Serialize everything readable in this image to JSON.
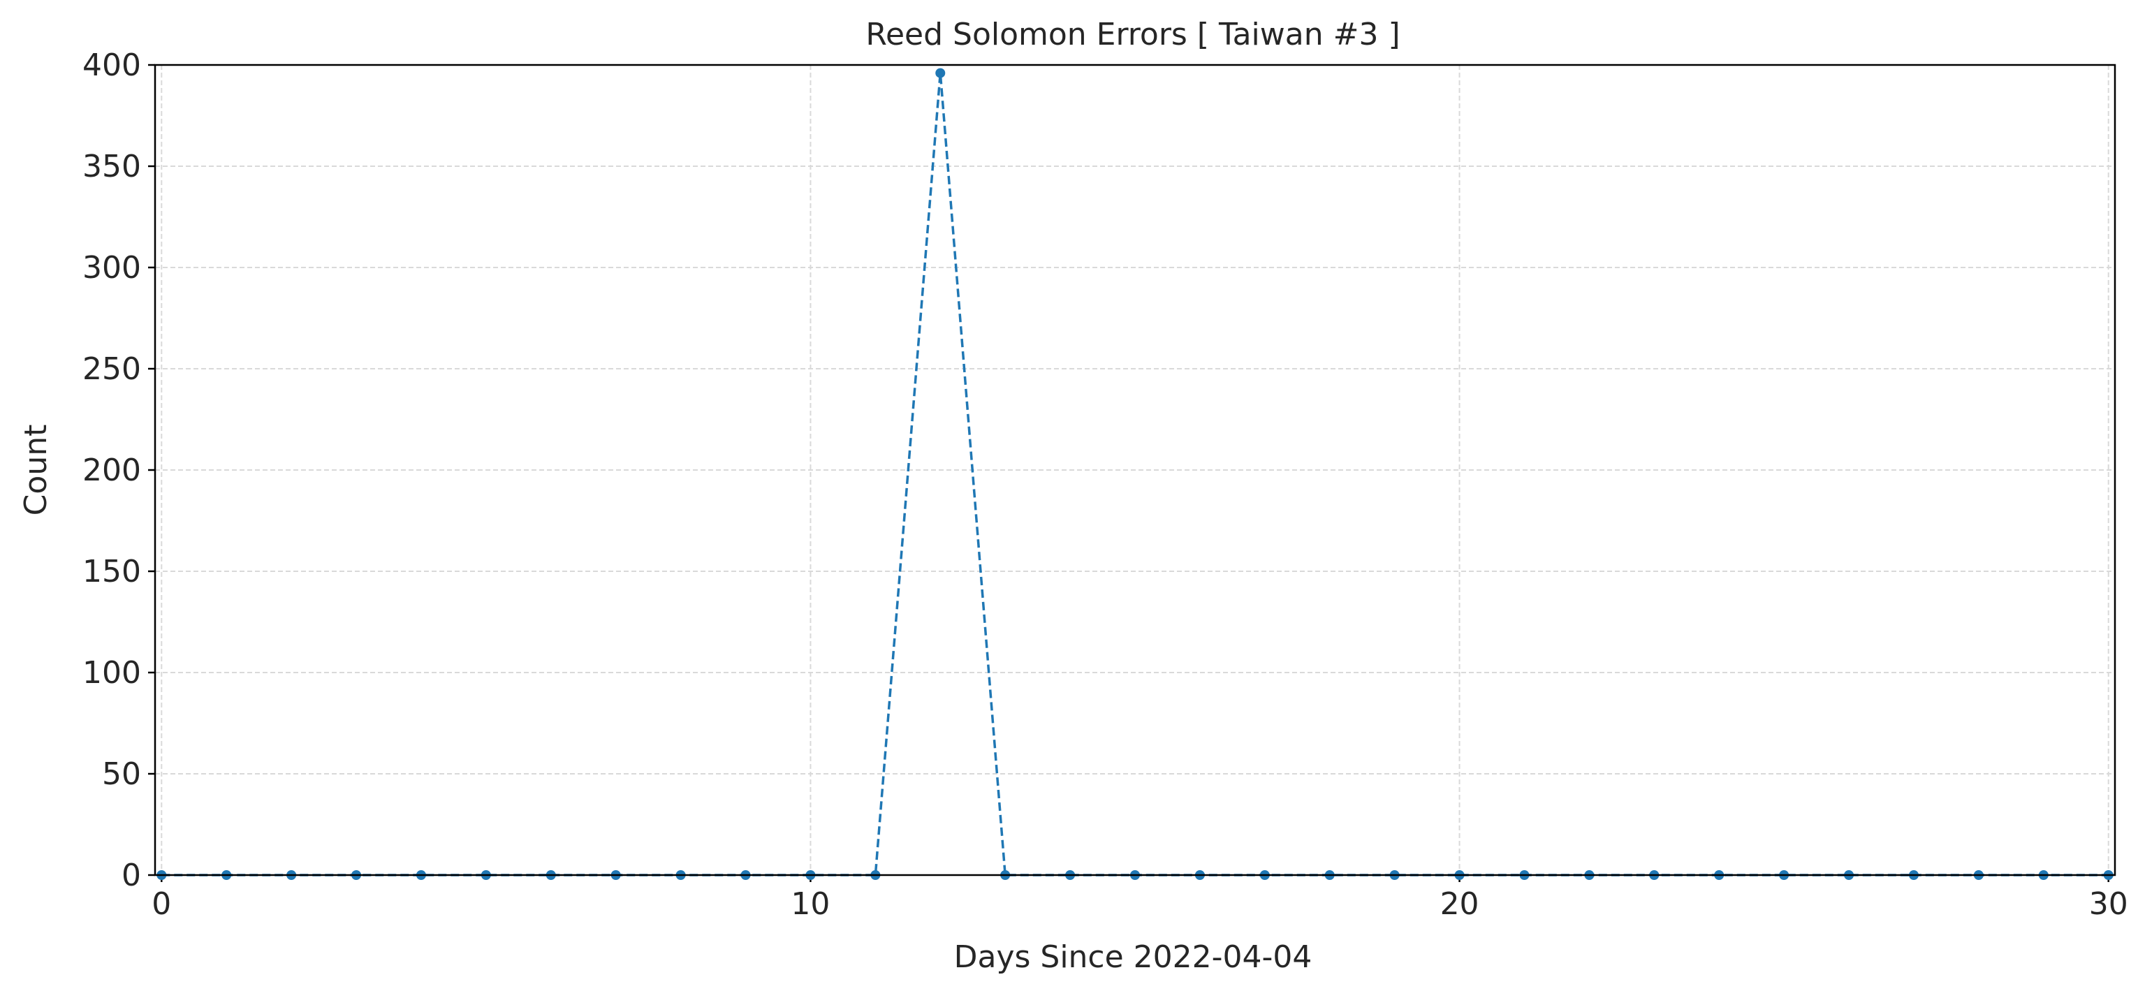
{
  "chart_data": {
    "type": "line",
    "title": "Reed Solomon Errors [ Taiwan #3 ]",
    "xlabel": "Days Since 2022-04-04",
    "ylabel": "Count",
    "xlim": [
      -0.1,
      30.1
    ],
    "ylim": [
      0,
      400
    ],
    "xticks": [
      0,
      10,
      20,
      30
    ],
    "yticks": [
      0,
      50,
      100,
      150,
      200,
      250,
      300,
      350,
      400
    ],
    "grid": true,
    "line_style": "dashed",
    "marker": "circle",
    "color": "#1f77b4",
    "series": [
      {
        "x": [
          0,
          1,
          2,
          3,
          4,
          5,
          6,
          7,
          8,
          9,
          10,
          11,
          12,
          13,
          14,
          15,
          16,
          17,
          18,
          19,
          20,
          21,
          22,
          23,
          24,
          25,
          26,
          27,
          28,
          29,
          30
        ],
        "values": [
          0,
          0,
          0,
          0,
          0,
          0,
          0,
          0,
          0,
          0,
          0,
          0,
          396,
          0,
          0,
          0,
          0,
          0,
          0,
          0,
          0,
          0,
          0,
          0,
          0,
          0,
          0,
          0,
          0,
          0,
          0
        ]
      }
    ]
  }
}
